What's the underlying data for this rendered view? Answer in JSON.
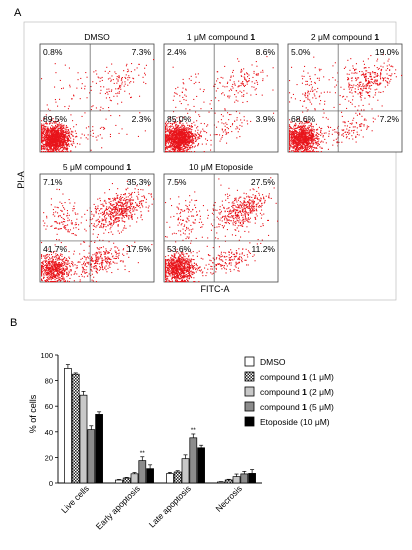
{
  "figure": {
    "panel_a_label": "A",
    "panel_b_label": "B"
  },
  "panel_a": {
    "xlabel": "FITC-A",
    "ylabel": "PI-A",
    "plot_color": "#e8141b",
    "plots": [
      {
        "title": "DMSO",
        "title_bold": "",
        "q_ul": "0.8%",
        "q_ur": "7.3%",
        "q_ll": "89.5%",
        "q_lr": "2.3%"
      },
      {
        "title": "1 μM compound ",
        "title_bold": "1",
        "q_ul": "2.4%",
        "q_ur": "8.6%",
        "q_ll": "85.0%",
        "q_lr": "3.9%"
      },
      {
        "title": "2 μM compound ",
        "title_bold": "1",
        "q_ul": "5.0%",
        "q_ur": "19.0%",
        "q_ll": "68.6%",
        "q_lr": "7.2%"
      },
      {
        "title": "5 μM compound ",
        "title_bold": "1",
        "q_ul": "7.1%",
        "q_ur": "35.3%",
        "q_ll": "41.7%",
        "q_lr": "17.5%"
      },
      {
        "title": "10 μM Etoposide",
        "title_bold": "",
        "q_ul": "7.5%",
        "q_ur": "27.5%",
        "q_ll": "53.6%",
        "q_lr": "11.2%"
      }
    ]
  },
  "chart_data": {
    "type": "bar",
    "ylabel": "% of cells",
    "ylim": [
      0,
      100
    ],
    "yticks": [
      0,
      20,
      40,
      60,
      80,
      100
    ],
    "categories": [
      "Live cells",
      "Early apoptosis",
      "Late apoptosis",
      "Necrosis"
    ],
    "significance": [
      "",
      "**",
      "**",
      ""
    ],
    "series": [
      {
        "name": "DMSO",
        "name_bold": "",
        "name_suffix": "",
        "values": [
          89.5,
          2.3,
          7.3,
          0.8
        ],
        "errors": [
          3,
          0.5,
          1,
          0.3
        ],
        "fill": "#ffffff",
        "pattern": "none"
      },
      {
        "name": "compound ",
        "name_bold": "1",
        "name_suffix": " (1 μM)",
        "values": [
          85.0,
          3.9,
          8.6,
          2.4
        ],
        "errors": [
          1,
          0.5,
          1,
          0.5
        ],
        "fill": "#cfcfcf",
        "pattern": "checker"
      },
      {
        "name": "compound ",
        "name_bold": "1",
        "name_suffix": " (2 μM)",
        "values": [
          68.6,
          7.2,
          19.0,
          5.0
        ],
        "errors": [
          3,
          1,
          3,
          2
        ],
        "fill": "#c8c8c8",
        "pattern": "none"
      },
      {
        "name": "compound ",
        "name_bold": "1",
        "name_suffix": " (5 μM)",
        "values": [
          41.7,
          17.5,
          35.3,
          7.1
        ],
        "errors": [
          3,
          3,
          3,
          2
        ],
        "fill": "#8c8c8c",
        "pattern": "none"
      },
      {
        "name": "Etoposide (10 μM)",
        "name_bold": "",
        "name_suffix": "",
        "values": [
          53.6,
          11.2,
          27.5,
          7.5
        ],
        "errors": [
          2,
          3,
          2,
          3
        ],
        "fill": "#000000",
        "pattern": "none"
      }
    ],
    "legend_position": "top-right"
  }
}
